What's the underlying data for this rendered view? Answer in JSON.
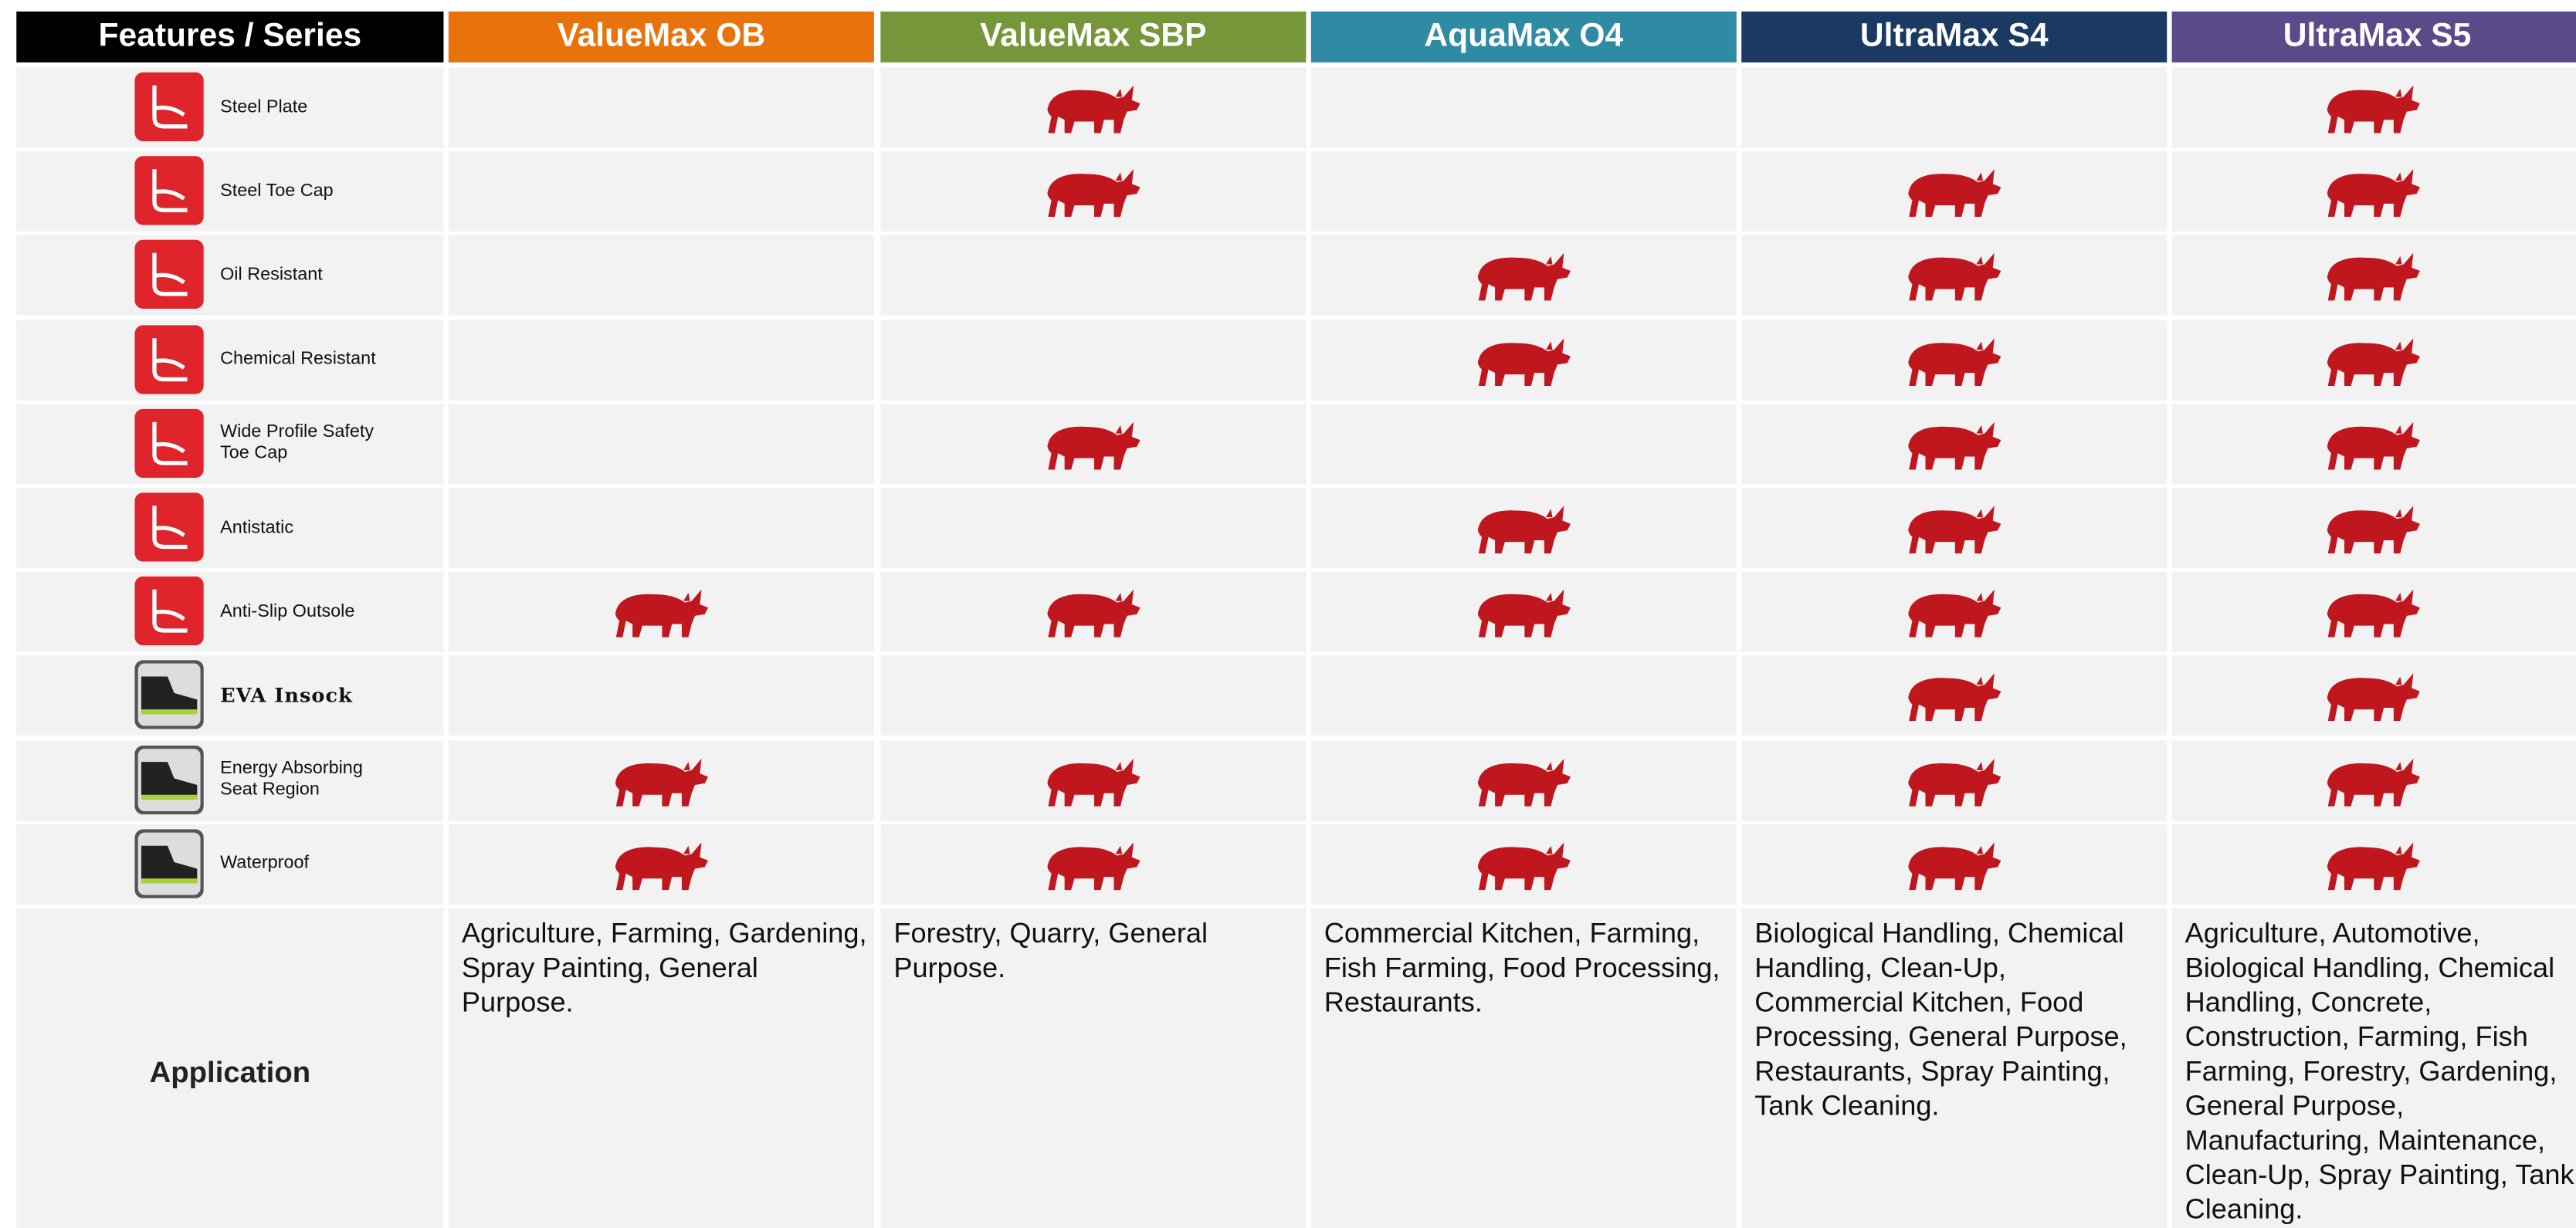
{
  "header": {
    "corner": "Features / Series",
    "series": [
      {
        "name": "ValueMax OB",
        "color": "#e8720c"
      },
      {
        "name": "ValueMax SBP",
        "color": "#76963a"
      },
      {
        "name": "AquaMax O4",
        "color": "#2e8ba3"
      },
      {
        "name": "UltraMax S4",
        "color": "#1b3a63"
      },
      {
        "name": "UltraMax S5",
        "color": "#5b4a8a"
      }
    ]
  },
  "rows": [
    {
      "feature": "Steel Plate",
      "marks": [
        false,
        true,
        false,
        false,
        true
      ]
    },
    {
      "feature": "Steel Toe Cap",
      "marks": [
        false,
        true,
        false,
        true,
        true
      ]
    },
    {
      "feature": "Oil Resistant",
      "marks": [
        false,
        false,
        true,
        true,
        true
      ]
    },
    {
      "feature": "Chemical Resistant",
      "marks": [
        false,
        false,
        true,
        true,
        true
      ]
    },
    {
      "feature": "Wide Profile Safety Toe Cap",
      "marks": [
        false,
        true,
        false,
        true,
        true
      ]
    },
    {
      "feature": "Antistatic",
      "marks": [
        false,
        false,
        true,
        true,
        true
      ]
    },
    {
      "feature": "Anti-Slip Outsole",
      "marks": [
        true,
        true,
        true,
        true,
        true
      ]
    },
    {
      "feature": "EVA Insock",
      "marks": [
        false,
        false,
        false,
        true,
        true
      ]
    },
    {
      "feature": "Energy Absorbing Seat Region",
      "marks": [
        true,
        true,
        true,
        true,
        true
      ]
    },
    {
      "feature": "Waterproof",
      "marks": [
        true,
        true,
        true,
        true,
        true
      ]
    }
  ],
  "application": {
    "label": "Application",
    "texts": [
      "Agriculture, Farming, Gardening, Spray Painting, General Purpose.",
      "Forestry, Quarry, General Purpose.",
      "Commercial Kitchen, Farming, Fish Farming,  Food Processing, Restaurants.",
      "Biological Handling, Chemical Handling, Clean-Up, Commercial Kitchen, Food Processing, General Purpose, Restaurants, Spray Painting, Tank Cleaning.",
      "Agriculture, Automotive, Biological Handling, Chemical Handling, Concrete, Construction, Farming, Fish Farming,  Forestry, Gardening, General Purpose, Manufacturing, Maintenance, Clean-Up, Spray Painting, Tank Cleaning."
    ]
  }
}
